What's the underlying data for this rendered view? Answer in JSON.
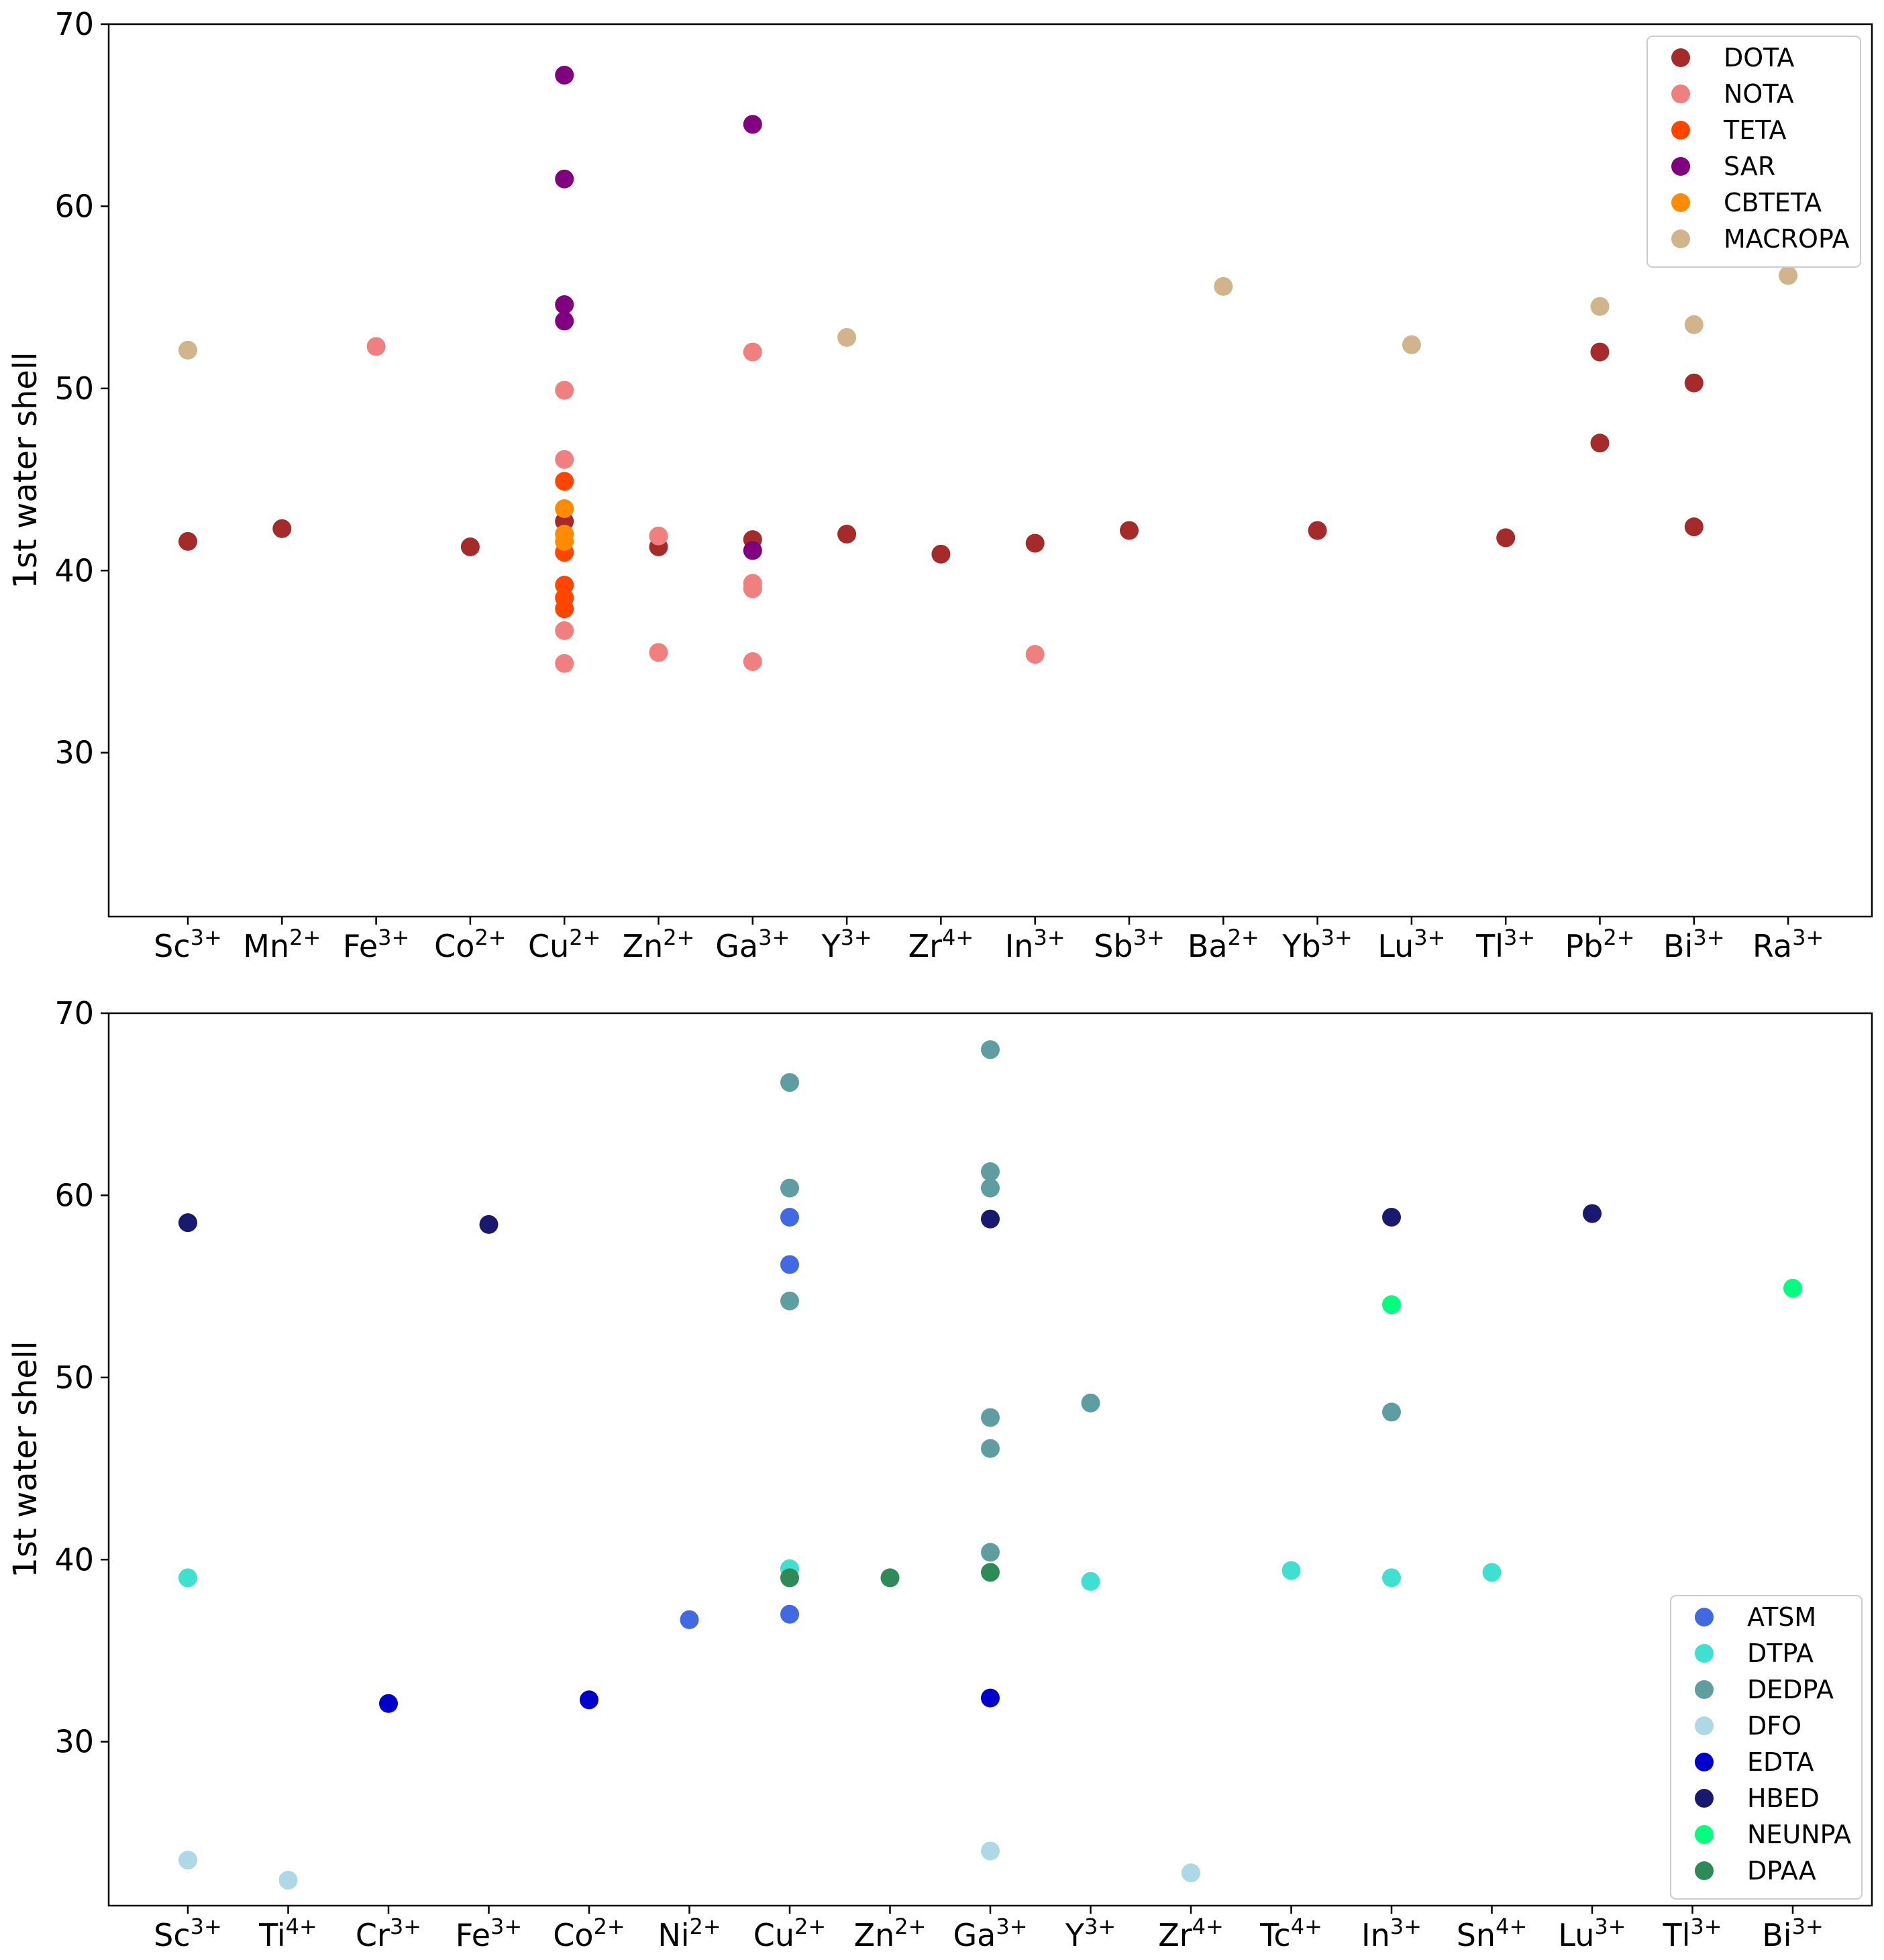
{
  "chart_data": [
    {
      "type": "scatter",
      "title": "",
      "xlabel": "",
      "ylabel": "1st water shell",
      "ylim": [
        21,
        70
      ],
      "yticks": [
        30,
        40,
        50,
        60,
        70
      ],
      "legend_position": "top-right",
      "categories": [
        {
          "sym": "Sc",
          "sup": "3+"
        },
        {
          "sym": "Mn",
          "sup": "2+"
        },
        {
          "sym": "Fe",
          "sup": "3+"
        },
        {
          "sym": "Co",
          "sup": "2+"
        },
        {
          "sym": "Cu",
          "sup": "2+"
        },
        {
          "sym": "Zn",
          "sup": "2+"
        },
        {
          "sym": "Ga",
          "sup": "3+"
        },
        {
          "sym": "Y",
          "sup": "3+"
        },
        {
          "sym": "Zr",
          "sup": "4+"
        },
        {
          "sym": "In",
          "sup": "3+"
        },
        {
          "sym": "Sb",
          "sup": "3+"
        },
        {
          "sym": "Ba",
          "sup": "2+"
        },
        {
          "sym": "Yb",
          "sup": "3+"
        },
        {
          "sym": "Lu",
          "sup": "3+"
        },
        {
          "sym": "Tl",
          "sup": "3+"
        },
        {
          "sym": "Pb",
          "sup": "2+"
        },
        {
          "sym": "Bi",
          "sup": "3+"
        },
        {
          "sym": "Ra",
          "sup": "3+"
        }
      ],
      "series": [
        {
          "name": "DOTA",
          "color": "#a52a2a",
          "points": [
            [
              "Sc",
              41.6
            ],
            [
              "Mn",
              42.3
            ],
            [
              "Co",
              41.3
            ],
            [
              "Cu",
              42.7
            ],
            [
              "Zn",
              41.3
            ],
            [
              "Ga",
              41.7
            ],
            [
              "Y",
              42.0
            ],
            [
              "Zr",
              40.9
            ],
            [
              "In",
              41.5
            ],
            [
              "Sb",
              42.2
            ],
            [
              "Yb",
              42.2
            ],
            [
              "Tl",
              41.8
            ],
            [
              "Pb",
              52.0
            ],
            [
              "Pb",
              47.0
            ],
            [
              "Bi",
              50.3
            ],
            [
              "Bi",
              42.4
            ]
          ]
        },
        {
          "name": "NOTA",
          "color": "#f08080",
          "points": [
            [
              "Fe",
              52.3
            ],
            [
              "Cu",
              49.9
            ],
            [
              "Cu",
              46.1
            ],
            [
              "Cu",
              36.7
            ],
            [
              "Cu",
              34.9
            ],
            [
              "Zn",
              41.9
            ],
            [
              "Zn",
              35.5
            ],
            [
              "Ga",
              52.0
            ],
            [
              "Ga",
              39.3
            ],
            [
              "Ga",
              39.0
            ],
            [
              "Ga",
              35.0
            ],
            [
              "In",
              35.4
            ]
          ]
        },
        {
          "name": "TETA",
          "color": "#ff4500",
          "points": [
            [
              "Cu",
              44.9
            ],
            [
              "Cu",
              41.0
            ],
            [
              "Cu",
              39.2
            ],
            [
              "Cu",
              38.5
            ],
            [
              "Cu",
              37.9
            ]
          ]
        },
        {
          "name": "SAR",
          "color": "#800080",
          "points": [
            [
              "Cu",
              67.2
            ],
            [
              "Cu",
              61.5
            ],
            [
              "Cu",
              54.6
            ],
            [
              "Cu",
              53.7
            ],
            [
              "Ga",
              64.5
            ],
            [
              "Ga",
              41.1
            ]
          ]
        },
        {
          "name": "CBTETA",
          "color": "#ff8c00",
          "points": [
            [
              "Cu",
              43.4
            ],
            [
              "Cu",
              42.0
            ],
            [
              "Cu",
              41.6
            ]
          ]
        },
        {
          "name": "MACROPA",
          "color": "#d2b48c",
          "points": [
            [
              "Sc",
              52.1
            ],
            [
              "Y",
              52.8
            ],
            [
              "Ba",
              55.6
            ],
            [
              "Lu",
              52.4
            ],
            [
              "Pb",
              54.5
            ],
            [
              "Bi",
              53.5
            ],
            [
              "Ra",
              56.2
            ]
          ]
        }
      ]
    },
    {
      "type": "scatter",
      "title": "",
      "xlabel": "",
      "ylabel": "1st water shell",
      "ylim": [
        21,
        70
      ],
      "yticks": [
        30,
        40,
        50,
        60,
        70
      ],
      "legend_position": "bottom-right",
      "categories": [
        {
          "sym": "Sc",
          "sup": "3+"
        },
        {
          "sym": "Ti",
          "sup": "4+"
        },
        {
          "sym": "Cr",
          "sup": "3+"
        },
        {
          "sym": "Fe",
          "sup": "3+"
        },
        {
          "sym": "Co",
          "sup": "2+"
        },
        {
          "sym": "Ni",
          "sup": "2+"
        },
        {
          "sym": "Cu",
          "sup": "2+"
        },
        {
          "sym": "Zn",
          "sup": "2+"
        },
        {
          "sym": "Ga",
          "sup": "3+"
        },
        {
          "sym": "Y",
          "sup": "3+"
        },
        {
          "sym": "Zr",
          "sup": "4+"
        },
        {
          "sym": "Tc",
          "sup": "4+"
        },
        {
          "sym": "In",
          "sup": "3+"
        },
        {
          "sym": "Sn",
          "sup": "4+"
        },
        {
          "sym": "Lu",
          "sup": "3+"
        },
        {
          "sym": "Tl",
          "sup": "3+"
        },
        {
          "sym": "Bi",
          "sup": "3+"
        }
      ],
      "series": [
        {
          "name": "ATSM",
          "color": "#4169e1",
          "points": [
            [
              "Ni",
              36.7
            ],
            [
              "Cu",
              58.8
            ],
            [
              "Cu",
              56.2
            ],
            [
              "Cu",
              37.0
            ]
          ]
        },
        {
          "name": "DTPA",
          "color": "#40e0d0",
          "points": [
            [
              "Sc",
              39.0
            ],
            [
              "Cu",
              39.5
            ],
            [
              "Y",
              38.8
            ],
            [
              "Tc",
              39.4
            ],
            [
              "In",
              39.0
            ],
            [
              "Sn",
              39.3
            ]
          ]
        },
        {
          "name": "DEDPA",
          "color": "#5f9ea0",
          "points": [
            [
              "Cu",
              66.2
            ],
            [
              "Cu",
              60.4
            ],
            [
              "Cu",
              54.2
            ],
            [
              "Ga",
              68.0
            ],
            [
              "Ga",
              61.3
            ],
            [
              "Ga",
              60.4
            ],
            [
              "Ga",
              47.8
            ],
            [
              "Ga",
              46.1
            ],
            [
              "Ga",
              40.4
            ],
            [
              "Y",
              48.6
            ],
            [
              "In",
              48.1
            ]
          ]
        },
        {
          "name": "DFO",
          "color": "#add8e6",
          "points": [
            [
              "Sc",
              23.5
            ],
            [
              "Ti",
              22.4
            ],
            [
              "Ga",
              24.0
            ],
            [
              "Zr",
              22.8
            ]
          ]
        },
        {
          "name": "EDTA",
          "color": "#0000cd",
          "points": [
            [
              "Cr",
              32.1
            ],
            [
              "Co",
              32.3
            ],
            [
              "Ga",
              32.4
            ]
          ]
        },
        {
          "name": "HBED",
          "color": "#191970",
          "points": [
            [
              "Sc",
              58.5
            ],
            [
              "Fe",
              58.4
            ],
            [
              "Ga",
              58.7
            ],
            [
              "In",
              58.8
            ],
            [
              "Lu",
              59.0
            ]
          ]
        },
        {
          "name": "NEUNPA",
          "color": "#00ff7f",
          "points": [
            [
              "In",
              54.0
            ],
            [
              "Bi",
              54.9
            ]
          ]
        },
        {
          "name": "DPAA",
          "color": "#2e8b57",
          "points": [
            [
              "Cu",
              39.0
            ],
            [
              "Zn",
              39.0
            ],
            [
              "Ga",
              39.3
            ]
          ]
        }
      ]
    }
  ]
}
